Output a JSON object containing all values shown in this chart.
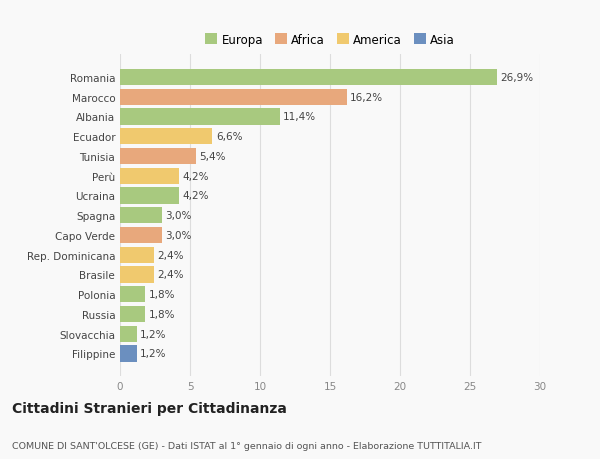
{
  "countries": [
    "Romania",
    "Marocco",
    "Albania",
    "Ecuador",
    "Tunisia",
    "Perù",
    "Ucraina",
    "Spagna",
    "Capo Verde",
    "Rep. Dominicana",
    "Brasile",
    "Polonia",
    "Russia",
    "Slovacchia",
    "Filippine"
  ],
  "values": [
    26.9,
    16.2,
    11.4,
    6.6,
    5.4,
    4.2,
    4.2,
    3.0,
    3.0,
    2.4,
    2.4,
    1.8,
    1.8,
    1.2,
    1.2
  ],
  "labels": [
    "26,9%",
    "16,2%",
    "11,4%",
    "6,6%",
    "5,4%",
    "4,2%",
    "4,2%",
    "3,0%",
    "3,0%",
    "2,4%",
    "2,4%",
    "1,8%",
    "1,8%",
    "1,2%",
    "1,2%"
  ],
  "continents": [
    "Europa",
    "Africa",
    "Europa",
    "America",
    "Africa",
    "America",
    "Europa",
    "Europa",
    "Africa",
    "America",
    "America",
    "Europa",
    "Europa",
    "Europa",
    "Asia"
  ],
  "continent_colors": {
    "Europa": "#a8c97f",
    "Africa": "#e8a87c",
    "America": "#f0c96e",
    "Asia": "#6b8fbf"
  },
  "legend_order": [
    "Europa",
    "Africa",
    "America",
    "Asia"
  ],
  "title": "Cittadini Stranieri per Cittadinanza",
  "subtitle": "COMUNE DI SANT'OLCESE (GE) - Dati ISTAT al 1° gennaio di ogni anno - Elaborazione TUTTITALIA.IT",
  "xlim": [
    0,
    30
  ],
  "xticks": [
    0,
    5,
    10,
    15,
    20,
    25,
    30
  ],
  "background_color": "#f9f9f9",
  "bar_height": 0.82,
  "grid_color": "#dddddd",
  "label_fontsize": 7.5,
  "tick_fontsize": 7.5,
  "title_fontsize": 10,
  "subtitle_fontsize": 6.8
}
